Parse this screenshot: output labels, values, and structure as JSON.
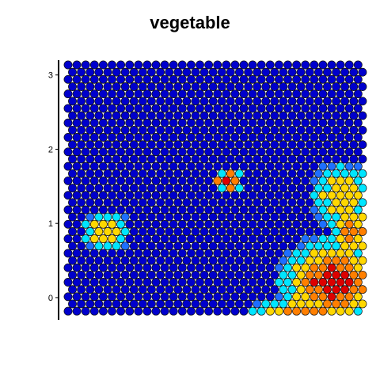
{
  "chart_data": {
    "type": "heatmap",
    "title": "vegetable",
    "y_ticks": [
      "0",
      "1",
      "2",
      "3"
    ],
    "grid": {
      "columns": 34,
      "rows": 35,
      "layout": "hexagonal",
      "y_range": [
        -0.3,
        3.2
      ]
    },
    "color_scale": [
      "#0000cc",
      "#1e6fff",
      "#00e5ff",
      "#ffd700",
      "#ff7f00",
      "#dd0000"
    ],
    "levels_description": "0 = dark blue (low) ... 5 = red (high)",
    "hotspots": [
      {
        "region": "bottom-right",
        "cx": 30,
        "cy": 30,
        "rx": 7,
        "ry": 7,
        "peak": 5
      },
      {
        "region": "bottom-right-edge",
        "cx": 27,
        "cy": 34,
        "rx": 7,
        "ry": 2,
        "peak": 4
      },
      {
        "region": "right",
        "cx": 31,
        "cy": 18,
        "rx": 4,
        "ry": 5,
        "peak": 3
      },
      {
        "region": "right-middle",
        "cx": 32,
        "cy": 23,
        "rx": 3,
        "ry": 5,
        "peak": 4
      },
      {
        "region": "left",
        "cx": 4,
        "cy": 23,
        "rx": 3,
        "ry": 3,
        "peak": 3
      },
      {
        "region": "center",
        "cx": 18,
        "cy": 16,
        "rx": 2,
        "ry": 2,
        "peak": 5
      }
    ]
  }
}
